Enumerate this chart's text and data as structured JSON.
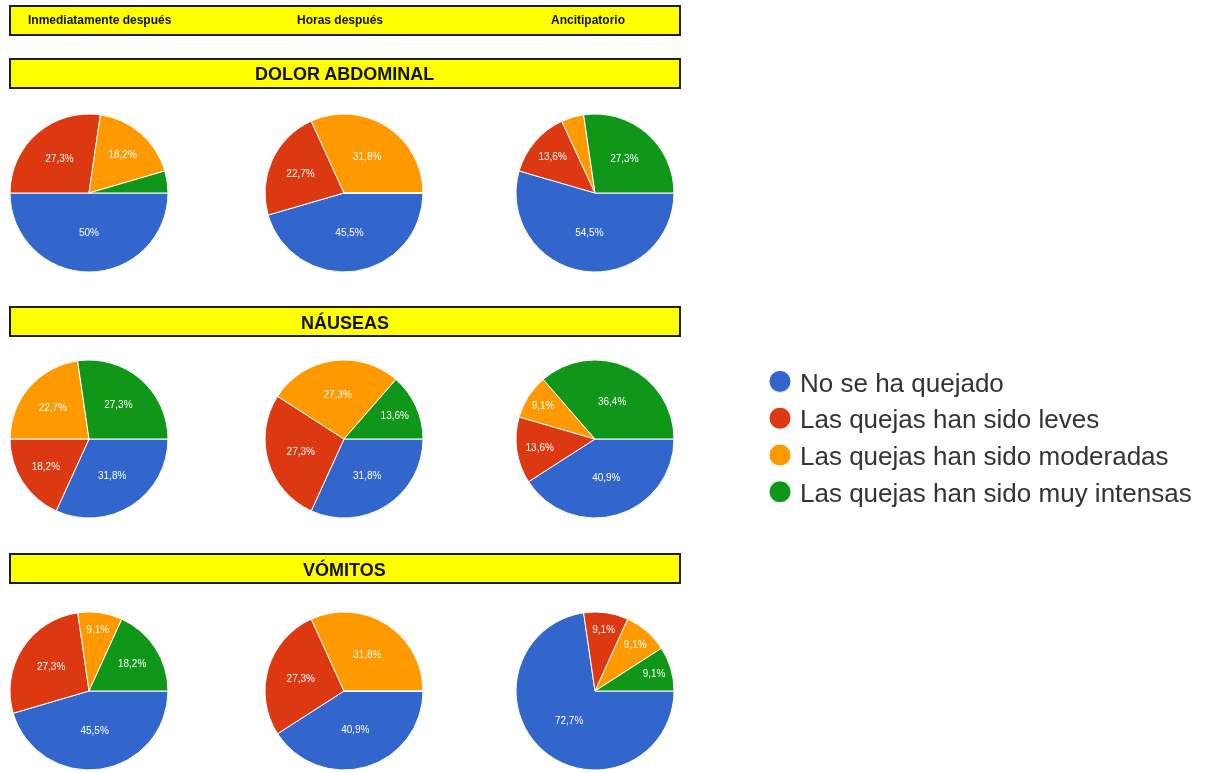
{
  "chart_data": [
    {
      "type": "other",
      "annotations": [
        "Inmediatamente después",
        "Horas después",
        "Ancitipatorio"
      ]
    },
    {
      "type": "other",
      "title": "DOLOR ABDOMINAL"
    },
    {
      "type": "pie",
      "categories": [
        null,
        null,
        null,
        null
      ],
      "values": [
        50,
        27.3,
        18.2,
        4.5
      ],
      "colors": [
        "#3366cc",
        "#dc3912",
        "#ff9900",
        "#109618"
      ],
      "value_labels": [
        "50%",
        "27,3%",
        "18,2%",
        null
      ]
    },
    {
      "type": "pie",
      "categories": [
        null,
        null,
        null,
        null
      ],
      "values": [
        45.5,
        22.7,
        31.8,
        0
      ],
      "colors": [
        "#3366cc",
        "#dc3912",
        "#ff9900",
        "#109618"
      ],
      "value_labels": [
        "45,5%",
        "22,7%",
        "31,8%",
        null
      ]
    },
    {
      "type": "pie",
      "categories": [
        null,
        null,
        null,
        null
      ],
      "values": [
        54.5,
        13.6,
        4.6,
        27.3
      ],
      "colors": [
        "#3366cc",
        "#dc3912",
        "#ff9900",
        "#109618"
      ],
      "value_labels": [
        "54,5%",
        "13,6%",
        null,
        "27,3%"
      ]
    },
    {
      "type": "other",
      "title": "NÁUSEAS"
    },
    {
      "type": "pie",
      "categories": [
        null,
        null,
        null,
        null
      ],
      "values": [
        31.8,
        18.2,
        22.7,
        27.3
      ],
      "colors": [
        "#3366cc",
        "#dc3912",
        "#ff9900",
        "#109618"
      ],
      "value_labels": [
        "31,8%",
        "18,2%",
        "22,7%",
        "27,3%"
      ]
    },
    {
      "type": "pie",
      "categories": [
        null,
        null,
        null,
        null
      ],
      "values": [
        31.8,
        27.3,
        27.3,
        13.6
      ],
      "colors": [
        "#3366cc",
        "#dc3912",
        "#ff9900",
        "#109618"
      ],
      "value_labels": [
        "31,8%",
        "27,3%",
        "27,3%",
        "13,6%"
      ]
    },
    {
      "type": "pie",
      "categories": [
        "No se ha quejado",
        "Las quejas han sido leves",
        "Las quejas han sido moderadas",
        "Las quejas han sido muy intensas"
      ],
      "values": [
        40.9,
        13.6,
        9.1,
        36.4
      ],
      "colors": [
        "#3366cc",
        "#dc3912",
        "#ff9900",
        "#109618"
      ],
      "value_labels": [
        "40,9%",
        "13,6%",
        "9,1%",
        "36,4%"
      ],
      "legend": "right"
    },
    {
      "type": "other",
      "title": "VÓMITOS"
    },
    {
      "type": "pie",
      "categories": [
        null,
        null,
        null,
        null
      ],
      "values": [
        45.5,
        27.3,
        9.1,
        18.2
      ],
      "colors": [
        "#3366cc",
        "#dc3912",
        "#ff9900",
        "#109618"
      ],
      "value_labels": [
        "45,5%",
        "27,3%",
        "9,1%",
        "18,2%"
      ]
    },
    {
      "type": "pie",
      "categories": [
        null,
        null,
        null,
        null
      ],
      "values": [
        40.9,
        27.3,
        31.8,
        0
      ],
      "colors": [
        "#3366cc",
        "#dc3912",
        "#ff9900",
        "#109618"
      ],
      "value_labels": [
        "40,9%",
        "27,3%",
        "31,8%",
        null
      ]
    },
    {
      "type": "pie",
      "categories": [
        null,
        null,
        null,
        null
      ],
      "values": [
        72.7,
        9.1,
        9.1,
        9.1
      ],
      "colors": [
        "#3366cc",
        "#dc3912",
        "#ff9900",
        "#109618"
      ],
      "value_labels": [
        "72,7%",
        "9,1%",
        "9,1%",
        "9,1%"
      ]
    }
  ]
}
